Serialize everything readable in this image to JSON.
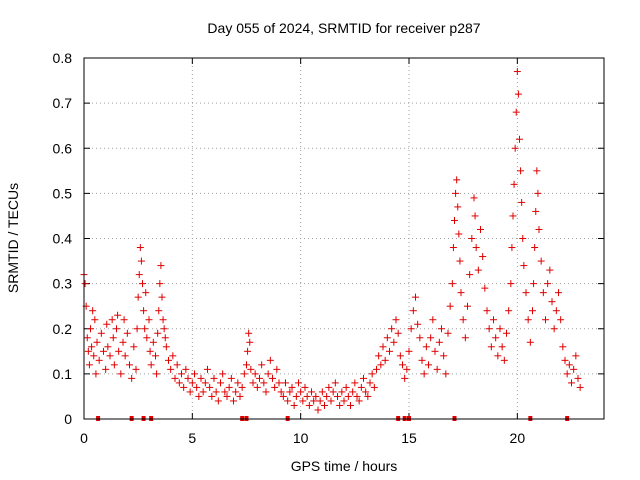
{
  "chart_data": {
    "type": "scatter",
    "title": "Day 055 of 2024, SRMTID for receiver p287",
    "xlabel": "GPS time / hours",
    "ylabel": "SRMTID / TECUs",
    "xlim": [
      0,
      24.0
    ],
    "ylim": [
      0,
      0.8
    ],
    "xticks": [
      0,
      5,
      10,
      15,
      20
    ],
    "yticks": [
      0,
      0.1,
      0.2,
      0.3,
      0.4,
      0.5,
      0.6,
      0.7,
      0.8
    ],
    "xtick_labels": [
      "0",
      "5",
      "10",
      "15",
      "20"
    ],
    "ytick_labels": [
      "0",
      "0.1",
      "0.2",
      "0.3",
      "0.4",
      "0.5",
      "0.6",
      "0.7",
      "0.8"
    ],
    "grid": true,
    "legend": "none",
    "color": "#e00000",
    "marker": "plus",
    "series": [
      {
        "name": "SRMTID",
        "points": [
          [
            0.0,
            0.32
          ],
          [
            0.05,
            0.3
          ],
          [
            0.1,
            0.25
          ],
          [
            0.15,
            0.18
          ],
          [
            0.2,
            0.15
          ],
          [
            0.25,
            0.12
          ],
          [
            0.3,
            0.2
          ],
          [
            0.35,
            0.16
          ],
          [
            0.4,
            0.24
          ],
          [
            0.45,
            0.14
          ],
          [
            0.5,
            0.22
          ],
          [
            0.55,
            0.1
          ],
          [
            0.6,
            0.17
          ],
          [
            0.7,
            0.13
          ],
          [
            0.8,
            0.19
          ],
          [
            0.9,
            0.15
          ],
          [
            1.0,
            0.11
          ],
          [
            1.05,
            0.21
          ],
          [
            1.1,
            0.16
          ],
          [
            1.2,
            0.14
          ],
          [
            1.3,
            0.22
          ],
          [
            1.35,
            0.18
          ],
          [
            1.4,
            0.12
          ],
          [
            1.5,
            0.2
          ],
          [
            1.55,
            0.23
          ],
          [
            1.6,
            0.15
          ],
          [
            1.7,
            0.1
          ],
          [
            1.8,
            0.17
          ],
          [
            1.85,
            0.22
          ],
          [
            1.9,
            0.14
          ],
          [
            2.0,
            0.19
          ],
          [
            2.1,
            0.12
          ],
          [
            2.2,
            0.09
          ],
          [
            2.3,
            0.16
          ],
          [
            2.4,
            0.11
          ],
          [
            2.45,
            0.2
          ],
          [
            2.5,
            0.27
          ],
          [
            2.55,
            0.32
          ],
          [
            2.6,
            0.38
          ],
          [
            2.65,
            0.35
          ],
          [
            2.7,
            0.3
          ],
          [
            2.75,
            0.24
          ],
          [
            2.8,
            0.2
          ],
          [
            2.85,
            0.28
          ],
          [
            2.9,
            0.18
          ],
          [
            3.0,
            0.22
          ],
          [
            3.05,
            0.15
          ],
          [
            3.1,
            0.12
          ],
          [
            3.2,
            0.17
          ],
          [
            3.3,
            0.14
          ],
          [
            3.35,
            0.1
          ],
          [
            3.4,
            0.19
          ],
          [
            3.45,
            0.24
          ],
          [
            3.5,
            0.3
          ],
          [
            3.55,
            0.34
          ],
          [
            3.6,
            0.27
          ],
          [
            3.65,
            0.22
          ],
          [
            3.7,
            0.2
          ],
          [
            3.75,
            0.18
          ],
          [
            3.8,
            0.16
          ],
          [
            3.9,
            0.13
          ],
          [
            4.0,
            0.11
          ],
          [
            4.1,
            0.14
          ],
          [
            4.2,
            0.09
          ],
          [
            4.3,
            0.12
          ],
          [
            4.4,
            0.08
          ],
          [
            4.5,
            0.1
          ],
          [
            4.6,
            0.07
          ],
          [
            4.7,
            0.11
          ],
          [
            4.8,
            0.09
          ],
          [
            4.9,
            0.06
          ],
          [
            5.0,
            0.08
          ],
          [
            5.1,
            0.1
          ],
          [
            5.2,
            0.07
          ],
          [
            5.3,
            0.05
          ],
          [
            5.4,
            0.09
          ],
          [
            5.5,
            0.06
          ],
          [
            5.6,
            0.08
          ],
          [
            5.7,
            0.11
          ],
          [
            5.8,
            0.07
          ],
          [
            5.9,
            0.05
          ],
          [
            6.0,
            0.09
          ],
          [
            6.1,
            0.06
          ],
          [
            6.2,
            0.04
          ],
          [
            6.3,
            0.08
          ],
          [
            6.4,
            0.1
          ],
          [
            6.5,
            0.06
          ],
          [
            6.6,
            0.05
          ],
          [
            6.7,
            0.07
          ],
          [
            6.8,
            0.09
          ],
          [
            6.9,
            0.04
          ],
          [
            7.0,
            0.06
          ],
          [
            7.1,
            0.08
          ],
          [
            7.2,
            0.05
          ],
          [
            7.3,
            0.07
          ],
          [
            7.4,
            0.1
          ],
          [
            7.5,
            0.12
          ],
          [
            7.55,
            0.15
          ],
          [
            7.6,
            0.19
          ],
          [
            7.65,
            0.17
          ],
          [
            7.7,
            0.11
          ],
          [
            7.8,
            0.08
          ],
          [
            7.9,
            0.1
          ],
          [
            8.0,
            0.07
          ],
          [
            8.1,
            0.09
          ],
          [
            8.2,
            0.12
          ],
          [
            8.3,
            0.08
          ],
          [
            8.4,
            0.06
          ],
          [
            8.5,
            0.1
          ],
          [
            8.6,
            0.13
          ],
          [
            8.7,
            0.09
          ],
          [
            8.8,
            0.07
          ],
          [
            8.9,
            0.11
          ],
          [
            9.0,
            0.08
          ],
          [
            9.1,
            0.06
          ],
          [
            9.2,
            0.05
          ],
          [
            9.3,
            0.08
          ],
          [
            9.4,
            0.04
          ],
          [
            9.5,
            0.06
          ],
          [
            9.6,
            0.07
          ],
          [
            9.7,
            0.03
          ],
          [
            9.8,
            0.05
          ],
          [
            9.9,
            0.08
          ],
          [
            10.0,
            0.06
          ],
          [
            10.1,
            0.04
          ],
          [
            10.2,
            0.07
          ],
          [
            10.3,
            0.05
          ],
          [
            10.4,
            0.03
          ],
          [
            10.5,
            0.06
          ],
          [
            10.6,
            0.04
          ],
          [
            10.7,
            0.05
          ],
          [
            10.8,
            0.02
          ],
          [
            10.9,
            0.04
          ],
          [
            11.0,
            0.06
          ],
          [
            11.1,
            0.03
          ],
          [
            11.2,
            0.05
          ],
          [
            11.3,
            0.07
          ],
          [
            11.4,
            0.04
          ],
          [
            11.5,
            0.06
          ],
          [
            11.6,
            0.08
          ],
          [
            11.7,
            0.05
          ],
          [
            11.8,
            0.03
          ],
          [
            11.9,
            0.06
          ],
          [
            12.0,
            0.04
          ],
          [
            12.1,
            0.07
          ],
          [
            12.2,
            0.05
          ],
          [
            12.3,
            0.03
          ],
          [
            12.4,
            0.06
          ],
          [
            12.5,
            0.08
          ],
          [
            12.6,
            0.05
          ],
          [
            12.7,
            0.04
          ],
          [
            12.8,
            0.07
          ],
          [
            12.9,
            0.09
          ],
          [
            13.0,
            0.06
          ],
          [
            13.1,
            0.05
          ],
          [
            13.2,
            0.08
          ],
          [
            13.3,
            0.1
          ],
          [
            13.4,
            0.07
          ],
          [
            13.5,
            0.11
          ],
          [
            13.6,
            0.14
          ],
          [
            13.7,
            0.12
          ],
          [
            13.8,
            0.16
          ],
          [
            13.9,
            0.13
          ],
          [
            14.0,
            0.18
          ],
          [
            14.1,
            0.15
          ],
          [
            14.2,
            0.2
          ],
          [
            14.3,
            0.17
          ],
          [
            14.4,
            0.22
          ],
          [
            14.5,
            0.19
          ],
          [
            14.6,
            0.14
          ],
          [
            14.7,
            0.12
          ],
          [
            14.8,
            0.09
          ],
          [
            14.9,
            0.11
          ],
          [
            15.0,
            0.15
          ],
          [
            15.1,
            0.2
          ],
          [
            15.2,
            0.24
          ],
          [
            15.3,
            0.27
          ],
          [
            15.4,
            0.21
          ],
          [
            15.5,
            0.18
          ],
          [
            15.6,
            0.13
          ],
          [
            15.7,
            0.1
          ],
          [
            15.8,
            0.16
          ],
          [
            15.9,
            0.12
          ],
          [
            16.0,
            0.18
          ],
          [
            16.1,
            0.22
          ],
          [
            16.2,
            0.15
          ],
          [
            16.3,
            0.11
          ],
          [
            16.4,
            0.17
          ],
          [
            16.5,
            0.2
          ],
          [
            16.6,
            0.14
          ],
          [
            16.7,
            0.1
          ],
          [
            16.8,
            0.19
          ],
          [
            16.9,
            0.25
          ],
          [
            17.0,
            0.3
          ],
          [
            17.05,
            0.38
          ],
          [
            17.1,
            0.44
          ],
          [
            17.15,
            0.5
          ],
          [
            17.2,
            0.53
          ],
          [
            17.25,
            0.47
          ],
          [
            17.3,
            0.41
          ],
          [
            17.35,
            0.35
          ],
          [
            17.4,
            0.28
          ],
          [
            17.5,
            0.22
          ],
          [
            17.6,
            0.18
          ],
          [
            17.7,
            0.25
          ],
          [
            17.8,
            0.32
          ],
          [
            17.9,
            0.4
          ],
          [
            18.0,
            0.49
          ],
          [
            18.05,
            0.45
          ],
          [
            18.1,
            0.38
          ],
          [
            18.2,
            0.33
          ],
          [
            18.3,
            0.42
          ],
          [
            18.4,
            0.36
          ],
          [
            18.5,
            0.29
          ],
          [
            18.6,
            0.24
          ],
          [
            18.7,
            0.2
          ],
          [
            18.8,
            0.16
          ],
          [
            18.9,
            0.22
          ],
          [
            19.0,
            0.18
          ],
          [
            19.1,
            0.14
          ],
          [
            19.2,
            0.2
          ],
          [
            19.3,
            0.16
          ],
          [
            19.4,
            0.13
          ],
          [
            19.5,
            0.19
          ],
          [
            19.6,
            0.24
          ],
          [
            19.7,
            0.3
          ],
          [
            19.75,
            0.38
          ],
          [
            19.8,
            0.45
          ],
          [
            19.85,
            0.52
          ],
          [
            19.9,
            0.6
          ],
          [
            19.95,
            0.68
          ],
          [
            20.0,
            0.77
          ],
          [
            20.05,
            0.72
          ],
          [
            20.1,
            0.62
          ],
          [
            20.15,
            0.55
          ],
          [
            20.2,
            0.48
          ],
          [
            20.25,
            0.4
          ],
          [
            20.3,
            0.34
          ],
          [
            20.4,
            0.28
          ],
          [
            20.5,
            0.22
          ],
          [
            20.6,
            0.17
          ],
          [
            20.7,
            0.24
          ],
          [
            20.75,
            0.3
          ],
          [
            20.8,
            0.38
          ],
          [
            20.85,
            0.46
          ],
          [
            20.9,
            0.55
          ],
          [
            20.95,
            0.5
          ],
          [
            21.0,
            0.42
          ],
          [
            21.1,
            0.35
          ],
          [
            21.2,
            0.28
          ],
          [
            21.3,
            0.22
          ],
          [
            21.4,
            0.3
          ],
          [
            21.5,
            0.33
          ],
          [
            21.6,
            0.26
          ],
          [
            21.7,
            0.2
          ],
          [
            21.8,
            0.24
          ],
          [
            21.9,
            0.28
          ],
          [
            22.0,
            0.22
          ],
          [
            22.1,
            0.16
          ],
          [
            22.2,
            0.13
          ],
          [
            22.3,
            0.1
          ],
          [
            22.4,
            0.12
          ],
          [
            22.5,
            0.08
          ],
          [
            22.6,
            0.11
          ],
          [
            22.7,
            0.14
          ],
          [
            22.8,
            0.09
          ],
          [
            22.9,
            0.07
          ]
        ]
      }
    ],
    "zero_points": [
      0.65,
      2.2,
      2.75,
      3.1,
      7.3,
      7.5,
      9.4,
      14.5,
      14.8,
      15.0,
      17.1,
      20.6,
      22.3
    ]
  }
}
